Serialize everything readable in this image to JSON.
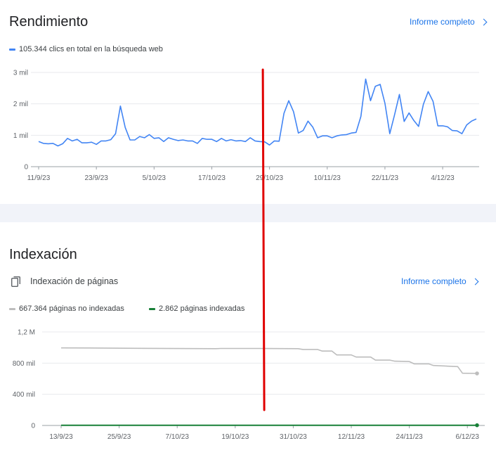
{
  "performance": {
    "title": "Rendimiento",
    "report_link": "Informe completo",
    "legend": "105.344 clics en total en la búsqueda web",
    "colors": {
      "clicks": "#4285f4"
    }
  },
  "indexing": {
    "title": "Indexación",
    "subtitle": "Indexación de páginas",
    "report_link": "Informe completo",
    "legend_not_indexed": "667.364 páginas no indexadas",
    "legend_indexed": "2.862 páginas indexadas",
    "colors": {
      "not_indexed": "#bdbdbd",
      "indexed": "#188038"
    }
  },
  "annotation": {
    "color": "#e00000",
    "date": "25/10/23"
  },
  "chart_data": [
    {
      "type": "line",
      "title": "",
      "xlabel": "",
      "ylabel": "",
      "ylim": [
        0,
        3000
      ],
      "y_ticks": [
        "0",
        "1 mil",
        "2 mil",
        "3 mil"
      ],
      "y_tick_values": [
        0,
        1000,
        2000,
        3000
      ],
      "x_ticks": [
        "11/9/23",
        "23/9/23",
        "5/10/23",
        "17/10/23",
        "29/10/23",
        "10/11/23",
        "22/11/23",
        "4/12/23"
      ],
      "x_start": "2023-09-11",
      "grid": true,
      "series": [
        {
          "name": "",
          "values": [
            800,
            740,
            730,
            740,
            660,
            730,
            900,
            820,
            870,
            760,
            760,
            780,
            710,
            820,
            820,
            860,
            1050,
            1930,
            1250,
            850,
            850,
            960,
            920,
            1020,
            900,
            920,
            800,
            920,
            870,
            830,
            850,
            820,
            820,
            740,
            900,
            870,
            870,
            800,
            900,
            820,
            860,
            820,
            830,
            800,
            920,
            820,
            800,
            790,
            690,
            820,
            810,
            1700,
            2100,
            1750,
            1070,
            1150,
            1450,
            1260,
            920,
            980,
            980,
            920,
            980,
            1010,
            1020,
            1070,
            1090,
            1600,
            2790,
            2100,
            2560,
            2620,
            2020,
            1050,
            1650,
            2300,
            1440,
            1710,
            1470,
            1280,
            1990,
            2390,
            2080,
            1300,
            1300,
            1270,
            1150,
            1140,
            1050,
            1330,
            1450,
            1520
          ]
        }
      ]
    },
    {
      "type": "line",
      "title": "",
      "xlabel": "",
      "ylabel": "",
      "ylim": [
        0,
        1200000
      ],
      "y_ticks": [
        "0",
        "400 mil",
        "800 mil",
        "1,2 M"
      ],
      "y_tick_values": [
        0,
        400000,
        800000,
        1200000
      ],
      "x_ticks": [
        "13/9/23",
        "25/9/23",
        "7/10/23",
        "19/10/23",
        "31/10/23",
        "12/11/23",
        "24/11/23",
        "6/12/23"
      ],
      "grid": true,
      "series": [
        {
          "name": "667.364 páginas no indexadas",
          "x": [
            "2023-09-13",
            "2023-09-21",
            "2023-09-29",
            "2023-10-07",
            "2023-10-15",
            "2023-10-16",
            "2023-10-24",
            "2023-11-01",
            "2023-11-02",
            "2023-11-05",
            "2023-11-06",
            "2023-11-08",
            "2023-11-09",
            "2023-11-12",
            "2023-11-13",
            "2023-11-16",
            "2023-11-17",
            "2023-11-20",
            "2023-11-21",
            "2023-11-24",
            "2023-11-25",
            "2023-11-28",
            "2023-11-29",
            "2023-12-04",
            "2023-12-05",
            "2023-12-08"
          ],
          "values": [
            995000,
            993000,
            990000,
            987000,
            985000,
            988000,
            988000,
            985000,
            975000,
            975000,
            955000,
            955000,
            905000,
            905000,
            878000,
            878000,
            838000,
            838000,
            825000,
            820000,
            790000,
            790000,
            770000,
            755000,
            670000,
            667364
          ]
        },
        {
          "name": "2.862 páginas indexadas",
          "x": [
            "2023-09-13",
            "2023-12-08"
          ],
          "values": [
            2862,
            2862
          ]
        }
      ]
    }
  ]
}
